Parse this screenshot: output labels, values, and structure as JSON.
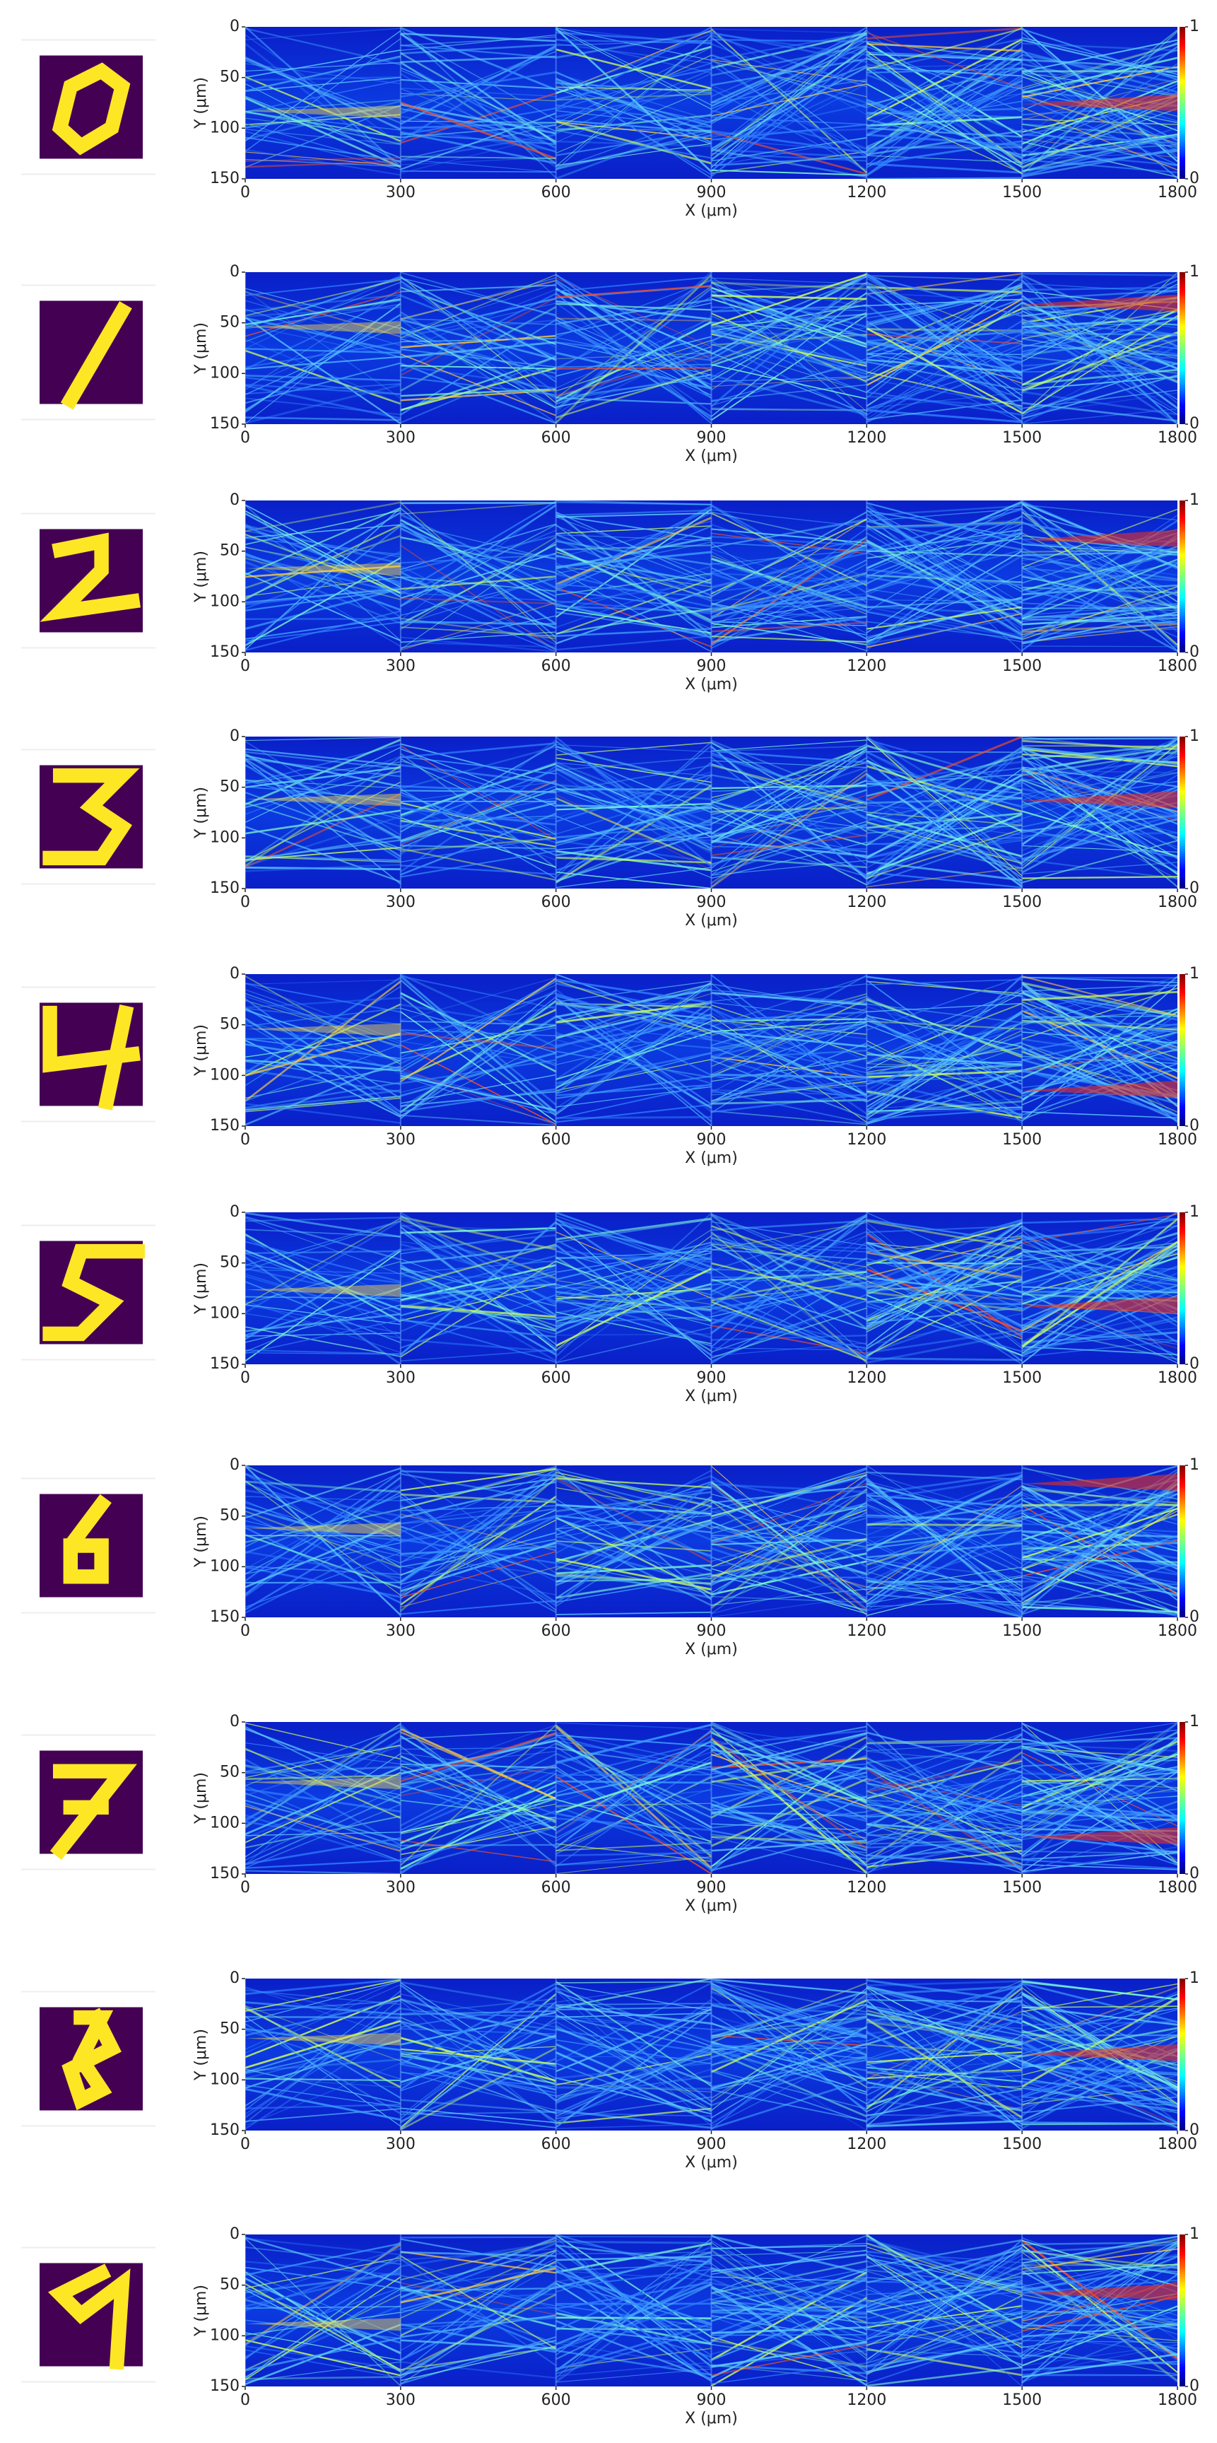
{
  "chart_data": [
    {
      "type": "heatmap",
      "xlabel": "X (μm)",
      "ylabel": "Y (μm)",
      "xlim": [
        0,
        1800
      ],
      "xticks": [
        0,
        300,
        600,
        900,
        1200,
        1500,
        1800
      ],
      "ylim": [
        0,
        150
      ],
      "y_inverted": true,
      "yticks": [
        0,
        50,
        100,
        150
      ],
      "colormap": "jet",
      "colorbar": {
        "lim": [
          0,
          1
        ],
        "ticks": [
          0,
          1
        ]
      }
    },
    {
      "type": "heatmap",
      "xlabel": "X (μm)",
      "ylabel": "Y (μm)",
      "xlim": [
        0,
        1800
      ],
      "xticks": [
        0,
        300,
        600,
        900,
        1200,
        1500,
        1800
      ],
      "ylim": [
        0,
        150
      ],
      "y_inverted": true,
      "yticks": [
        0,
        50,
        100,
        150
      ],
      "colormap": "jet",
      "colorbar": {
        "lim": [
          0,
          1
        ],
        "ticks": [
          0,
          1
        ]
      }
    },
    {
      "type": "heatmap",
      "xlabel": "X (μm)",
      "ylabel": "Y (μm)",
      "xlim": [
        0,
        1800
      ],
      "xticks": [
        0,
        300,
        600,
        900,
        1200,
        1500,
        1800
      ],
      "ylim": [
        0,
        150
      ],
      "y_inverted": true,
      "yticks": [
        0,
        50,
        100,
        150
      ],
      "colormap": "jet",
      "colorbar": {
        "lim": [
          0,
          1
        ],
        "ticks": [
          0,
          1
        ]
      }
    },
    {
      "type": "heatmap",
      "xlabel": "X (μm)",
      "ylabel": "Y (μm)",
      "xlim": [
        0,
        1800
      ],
      "xticks": [
        0,
        300,
        600,
        900,
        1200,
        1500,
        1800
      ],
      "ylim": [
        0,
        150
      ],
      "y_inverted": true,
      "yticks": [
        0,
        50,
        100,
        150
      ],
      "colormap": "jet",
      "colorbar": {
        "lim": [
          0,
          1
        ],
        "ticks": [
          0,
          1
        ]
      }
    },
    {
      "type": "heatmap",
      "xlabel": "X (μm)",
      "ylabel": "Y (μm)",
      "xlim": [
        0,
        1800
      ],
      "xticks": [
        0,
        300,
        600,
        900,
        1200,
        1500,
        1800
      ],
      "ylim": [
        0,
        150
      ],
      "y_inverted": true,
      "yticks": [
        0,
        50,
        100,
        150
      ],
      "colormap": "jet",
      "colorbar": {
        "lim": [
          0,
          1
        ],
        "ticks": [
          0,
          1
        ]
      }
    },
    {
      "type": "heatmap",
      "xlabel": "X (μm)",
      "ylabel": "Y (μm)",
      "xlim": [
        0,
        1800
      ],
      "xticks": [
        0,
        300,
        600,
        900,
        1200,
        1500,
        1800
      ],
      "ylim": [
        0,
        150
      ],
      "y_inverted": true,
      "yticks": [
        0,
        50,
        100,
        150
      ],
      "colormap": "jet",
      "colorbar": {
        "lim": [
          0,
          1
        ],
        "ticks": [
          0,
          1
        ]
      }
    },
    {
      "type": "heatmap",
      "xlabel": "X (μm)",
      "ylabel": "Y (μm)",
      "xlim": [
        0,
        1800
      ],
      "xticks": [
        0,
        300,
        600,
        900,
        1200,
        1500,
        1800
      ],
      "ylim": [
        0,
        150
      ],
      "y_inverted": true,
      "yticks": [
        0,
        50,
        100,
        150
      ],
      "colormap": "jet",
      "colorbar": {
        "lim": [
          0,
          1
        ],
        "ticks": [
          0,
          1
        ]
      }
    },
    {
      "type": "heatmap",
      "xlabel": "X (μm)",
      "ylabel": "Y (μm)",
      "xlim": [
        0,
        1800
      ],
      "xticks": [
        0,
        300,
        600,
        900,
        1200,
        1500,
        1800
      ],
      "ylim": [
        0,
        150
      ],
      "y_inverted": true,
      "yticks": [
        0,
        50,
        100,
        150
      ],
      "colormap": "jet",
      "colorbar": {
        "lim": [
          0,
          1
        ],
        "ticks": [
          0,
          1
        ]
      }
    },
    {
      "type": "heatmap",
      "xlabel": "X (μm)",
      "ylabel": "Y (μm)",
      "xlim": [
        0,
        1800
      ],
      "xticks": [
        0,
        300,
        600,
        900,
        1200,
        1500,
        1800
      ],
      "ylim": [
        0,
        150
      ],
      "y_inverted": true,
      "yticks": [
        0,
        50,
        100,
        150
      ],
      "colormap": "jet",
      "colorbar": {
        "lim": [
          0,
          1
        ],
        "ticks": [
          0,
          1
        ]
      }
    },
    {
      "type": "heatmap",
      "xlabel": "X (μm)",
      "ylabel": "Y (μm)",
      "xlim": [
        0,
        1800
      ],
      "xticks": [
        0,
        300,
        600,
        900,
        1200,
        1500,
        1800
      ],
      "ylim": [
        0,
        150
      ],
      "y_inverted": true,
      "yticks": [
        0,
        50,
        100,
        150
      ],
      "colormap": "jet",
      "colorbar": {
        "lim": [
          0,
          1
        ],
        "ticks": [
          0,
          1
        ]
      }
    }
  ]
}
